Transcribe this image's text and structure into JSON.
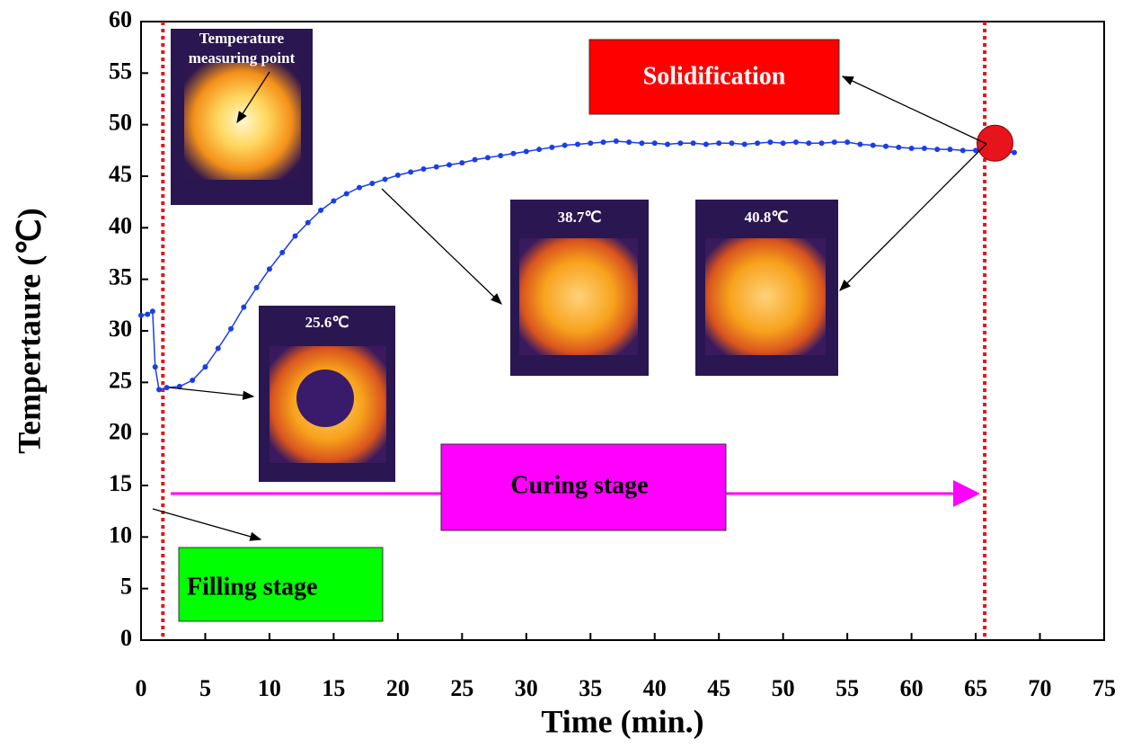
{
  "chart_data": {
    "type": "line",
    "x_label": "Time (min.)",
    "y_label": "Tempertaure (℃)",
    "xlim": [
      0,
      75
    ],
    "ylim": [
      0,
      60
    ],
    "xticks": [
      0,
      5,
      10,
      15,
      20,
      25,
      30,
      35,
      40,
      45,
      50,
      55,
      60,
      65,
      70,
      75
    ],
    "yticks": [
      0,
      5,
      10,
      15,
      20,
      25,
      30,
      35,
      40,
      45,
      50,
      55,
      60
    ],
    "series": [
      {
        "color": "#1a3ee6",
        "x": [
          0,
          0.5,
          0.9,
          1.1,
          1.4,
          2,
          3,
          4,
          5,
          6,
          7,
          8,
          9,
          10,
          11,
          12,
          13,
          14,
          15,
          16,
          17,
          18,
          19,
          20,
          21,
          22,
          23,
          24,
          25,
          26,
          27,
          28,
          29,
          30,
          31,
          32,
          33,
          34,
          35,
          36,
          37,
          38,
          39,
          40,
          41,
          42,
          43,
          44,
          45,
          46,
          47,
          48,
          49,
          50,
          51,
          52,
          53,
          54,
          55,
          56,
          57,
          58,
          59,
          60,
          61,
          62,
          63,
          64,
          65,
          66,
          67,
          68
        ],
        "values": [
          31.5,
          31.6,
          31.9,
          26.5,
          24.3,
          24.5,
          24.6,
          25.2,
          26.5,
          28.3,
          30.2,
          32.3,
          34.2,
          36,
          37.6,
          39.2,
          40.5,
          41.7,
          42.6,
          43.3,
          43.9,
          44.3,
          44.7,
          45.1,
          45.4,
          45.7,
          45.9,
          46.1,
          46.3,
          46.6,
          46.8,
          47,
          47.2,
          47.4,
          47.6,
          47.8,
          48,
          48.1,
          48.2,
          48.3,
          48.4,
          48.3,
          48.2,
          48.2,
          48.1,
          48.2,
          48.2,
          48.1,
          48.2,
          48.2,
          48.1,
          48.2,
          48.3,
          48.2,
          48.3,
          48.2,
          48.2,
          48.3,
          48.3,
          48.1,
          48,
          47.9,
          47.8,
          47.7,
          47.7,
          47.6,
          47.6,
          47.5,
          47.5,
          47.4,
          47.4,
          47.3
        ]
      }
    ],
    "stage_lines": {
      "color": "#e8141c",
      "x": [
        1.7,
        65.7
      ]
    },
    "solidification_point": {
      "x": 66.5,
      "y": 48.2,
      "color": "#e8141c"
    },
    "annotations": [
      "Solidification",
      "Curing stage",
      "Filling stage",
      "Temperature",
      "measuring point",
      "25.6℃",
      "38.7℃",
      "40.8℃"
    ]
  }
}
